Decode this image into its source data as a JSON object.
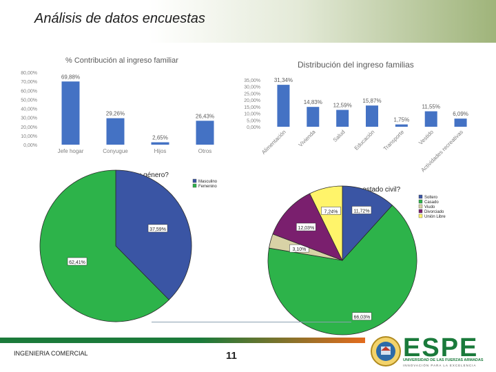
{
  "slide": {
    "title": "Análisis de datos encuestas",
    "footer": "INGENIERIA COMERCIAL",
    "page_number": "11",
    "logo_word": "ESPE",
    "logo_university": "UNIVERSIDAD DE LAS FUERZAS ARMADAS",
    "logo_motto": "INNOVACIÓN PARA LA EXCELENCIA",
    "logo_seal_text": "ESPE"
  },
  "colors": {
    "bar": "#4472c4",
    "blue": "#3a55a4",
    "green": "#2db34a",
    "beige": "#d8d2a6",
    "purple": "#7a1f6e",
    "yellow": "#fff46a",
    "footer_green": "#1b7a3a",
    "footer_orange": "#e36b1e"
  },
  "chart_data": [
    {
      "type": "bar",
      "title": "% Contribución al ingreso familiar",
      "categories": [
        "Jefe hogar",
        "Conyugue",
        "Hijos",
        "Otros"
      ],
      "values": [
        69.88,
        29.26,
        2.65,
        26.43
      ],
      "value_labels": [
        "69,88%",
        "29,26%",
        "2,65%",
        "26,43%"
      ],
      "ylim": [
        0,
        80
      ],
      "yticks": [
        "0,00%",
        "10,00%",
        "20,00%",
        "30,00%",
        "40,00%",
        "50,00%",
        "60,00%",
        "70,00%",
        "80,00%"
      ]
    },
    {
      "type": "bar",
      "title": "Distribución del ingreso familias",
      "categories": [
        "Alimentación",
        "Vivienda",
        "Salud",
        "Educación",
        "Transporte",
        "Vestido",
        "Actividades recreativas"
      ],
      "values": [
        31.34,
        14.83,
        12.59,
        15.87,
        1.75,
        11.55,
        6.09
      ],
      "value_labels": [
        "31,34%",
        "14,83%",
        "12,59%",
        "15,87%",
        "1,75%",
        "11,55%",
        "6,09%"
      ],
      "ylim": [
        0,
        35
      ],
      "yticks": [
        "0,00%",
        "5,00%",
        "10,00%",
        "15,00%",
        "20,00%",
        "25,00%",
        "30,00%",
        "35,00%"
      ]
    },
    {
      "type": "pie",
      "title": "¿Cuál es su género?",
      "labels": [
        "Masculino",
        "Femenino"
      ],
      "values": [
        37.59,
        62.41
      ],
      "value_labels": [
        "37,59%",
        "62,41%"
      ]
    },
    {
      "type": "pie",
      "title": "¿Cuál es su estado civil?",
      "labels": [
        "Soltero",
        "Casado",
        "Viudo",
        "Divorciado",
        "Unión Libre"
      ],
      "values": [
        11.72,
        66.03,
        3.1,
        12.03,
        7.24
      ],
      "value_labels": [
        "11,72%",
        "66,03%",
        "3,10%",
        "12,03%",
        "7,24%"
      ]
    }
  ]
}
